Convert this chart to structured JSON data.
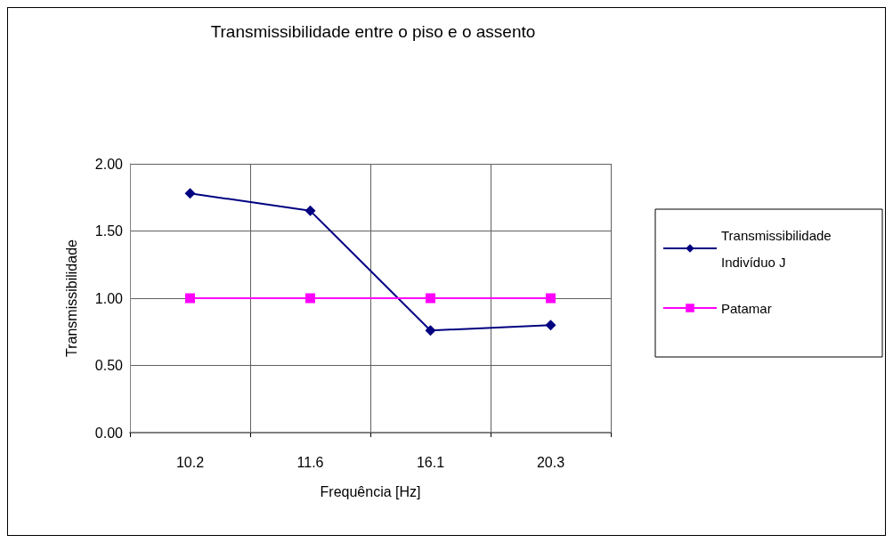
{
  "chart_data": {
    "type": "line",
    "title": "Transmissibilidade entre o piso e o assento",
    "xlabel": "Frequência [Hz]",
    "ylabel": "Transmissibilidade",
    "categories": [
      "10.2",
      "11.6",
      "16.1",
      "20.3"
    ],
    "series": [
      {
        "name": "Transmissibilidade Indivíduo J",
        "color": "#000080",
        "marker": "diamond",
        "values": [
          1.78,
          1.65,
          0.76,
          0.8
        ]
      },
      {
        "name": "Patamar",
        "color": "#ff00ff",
        "marker": "square",
        "values": [
          1,
          1,
          1,
          1
        ]
      }
    ],
    "ylim": [
      0,
      2
    ],
    "yticks": [
      {
        "value": 0,
        "label": "0.00"
      },
      {
        "value": 0.5,
        "label": "0.50"
      },
      {
        "value": 1,
        "label": "1.00"
      },
      {
        "value": 1.5,
        "label": "1.50"
      },
      {
        "value": 2,
        "label": "2.00"
      }
    ],
    "grid": true,
    "legend": "right"
  }
}
